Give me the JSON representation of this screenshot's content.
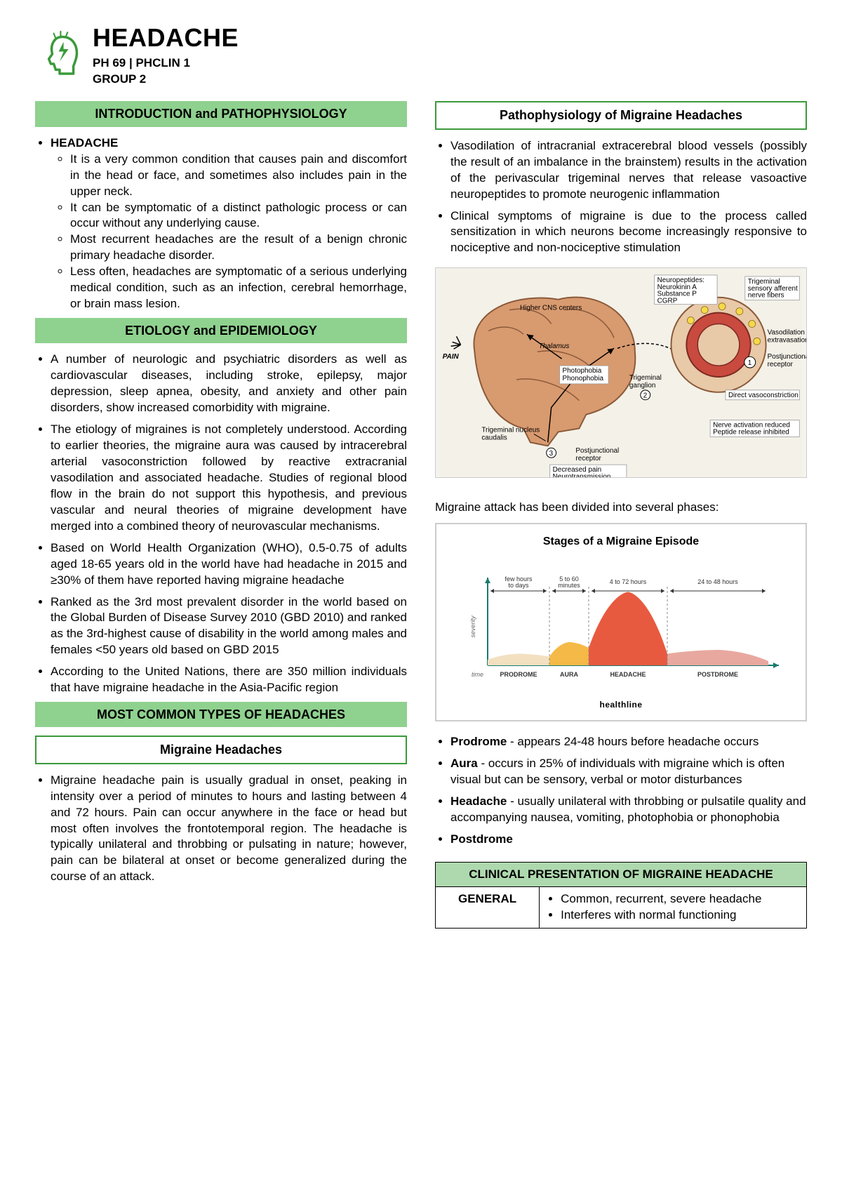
{
  "header": {
    "title": "HEADACHE",
    "sub1": "PH 69 | PHCLIN 1",
    "sub2": "GROUP 2",
    "logo_color": "#3a9a3a"
  },
  "left": {
    "sec1_title": "INTRODUCTION and PATHOPHYSIOLOGY",
    "headache_label": "HEADACHE",
    "headache_points": [
      "It is a very common condition that causes pain and discomfort in the head or face, and sometimes also includes pain in the upper neck.",
      "It can be symptomatic of a distinct pathologic process or can occur without any underlying cause.",
      "Most recurrent headaches are the result of a benign chronic primary headache disorder.",
      "Less often, headaches are symptomatic of a serious underlying medical condition, such as an infection, cerebral hemorrhage, or brain mass lesion."
    ],
    "sec2_title": "ETIOLOGY and EPIDEMIOLOGY",
    "etiology_points": [
      "A number of neurologic and psychiatric disorders as well as cardiovascular diseases, including stroke, epilepsy, major depression, sleep apnea, obesity, and anxiety and other pain disorders, show increased comorbidity with migraine.",
      "The etiology of migraines is not completely understood. According to earlier theories, the migraine aura was caused by intracerebral arterial vasoconstriction followed by reactive extracranial vasodilation and associated headache. Studies of regional blood flow in the brain do not support this hypothesis, and previous vascular and neural theories of migraine development have merged into a combined theory of neurovascular mechanisms.",
      "Based on World Health Organization (WHO), 0.5-0.75 of adults aged 18-65 years old in the world have had headache in 2015 and ≥30% of them have reported having migraine headache",
      "Ranked as the 3rd most prevalent disorder in the world based on the Global Burden of Disease Survey 2010 (GBD 2010) and ranked as the 3rd-highest cause of disability in the world among males and females <50 years old based on GBD 2015",
      "According to the United Nations, there are 350 million individuals that have migraine headache in the Asia-Pacific region"
    ],
    "sec3_title": "MOST COMMON TYPES OF HEADACHES",
    "migraine_box": "Migraine Headaches",
    "migraine_points": [
      "Migraine headache pain is usually gradual in onset, peaking in intensity over a period of minutes to hours and lasting between 4 and 72 hours. Pain can occur anywhere in the face or head but most often involves the frontotemporal region. The headache is typically unilateral and throbbing or pulsating in nature; however, pain can be bilateral at onset or become generalized during the course of an attack."
    ]
  },
  "right": {
    "patho_box": "Pathophysiology of Migraine Headaches",
    "patho_points": [
      "Vasodilation of intracranial extracerebral blood vessels (possibly the result of an imbalance in the brainstem) results in the activation of the perivascular trigeminal nerves that release vasoactive neuropeptides to promote neurogenic inflammation",
      "Clinical symptoms of migraine is due to the process called sensitization in which neurons become increasingly responsive to nociceptive and non-nociceptive stimulation"
    ],
    "brain_diagram": {
      "bg": "#f4f1e8",
      "brain_fill": "#d89a6f",
      "brain_stroke": "#8a5a3a",
      "vessel_fill": "#c94a3f",
      "labels": {
        "pain": "PAIN",
        "higher": "Higher CNS centers",
        "thalamus": "Thalamus",
        "photo": "Photophobia\nPhonophobia",
        "tnc": "Trigeminal nucleus\ncaudalis",
        "post": "Postjunctional\nreceptor",
        "decreased": "Decreased pain\nNeurotransmission",
        "tg": "Trigeminal\nganglion",
        "neuro": "Neuropeptides:\nNeurokinin A\nSubstance P\nCGRP",
        "trig_aff": "Trigeminal\nsensory afferent\nnerve fibers",
        "vasod": "Vasodilation\nextravasation",
        "post2": "Postjunctional\nreceptor",
        "direct": "Direct vasoconstriction",
        "nerve": "Nerve activation reduced\nPeptide release inhibited"
      }
    },
    "stages_caption": "Migraine attack has been divided into several phases:",
    "stages": {
      "title": "Stages of a Migraine Episode",
      "credit": "healthline",
      "y_label": "severity",
      "x_label": "time",
      "colors": {
        "prodrome": "#f2e0c1",
        "aura": "#f5b947",
        "headache": "#e85a3f",
        "postdrome": "#e8a8a0",
        "axis": "#1a7a6e"
      },
      "phases": [
        {
          "name": "PRODROME",
          "dur": "few hours\nto days",
          "w": 0.22,
          "h": 0.15
        },
        {
          "name": "AURA",
          "dur": "5 to 60\nminutes",
          "w": 0.14,
          "h": 0.3
        },
        {
          "name": "HEADACHE",
          "dur": "4 to 72 hours",
          "w": 0.28,
          "h": 0.95
        },
        {
          "name": "POSTDROME",
          "dur": "24 to 48 hours",
          "w": 0.36,
          "h": 0.2
        }
      ]
    },
    "phase_items": [
      {
        "name": "Prodrome",
        "desc": "- appears 24-48 hours before headache occurs"
      },
      {
        "name": "Aura",
        "desc": "- occurs in 25% of individuals with migraine which is often visual but can be sensory, verbal or motor disturbances"
      },
      {
        "name": "Headache",
        "desc": "- usually unilateral with throbbing or pulsatile quality and accompanying nausea, vomiting, photophobia or phonophobia"
      },
      {
        "name": "Postdrome",
        "desc": ""
      }
    ],
    "table": {
      "title": "CLINICAL PRESENTATION OF MIGRAINE HEADACHE",
      "row_label": "GENERAL",
      "row_items": [
        "Common, recurrent, severe headache",
        "Interferes with normal functioning"
      ]
    }
  }
}
